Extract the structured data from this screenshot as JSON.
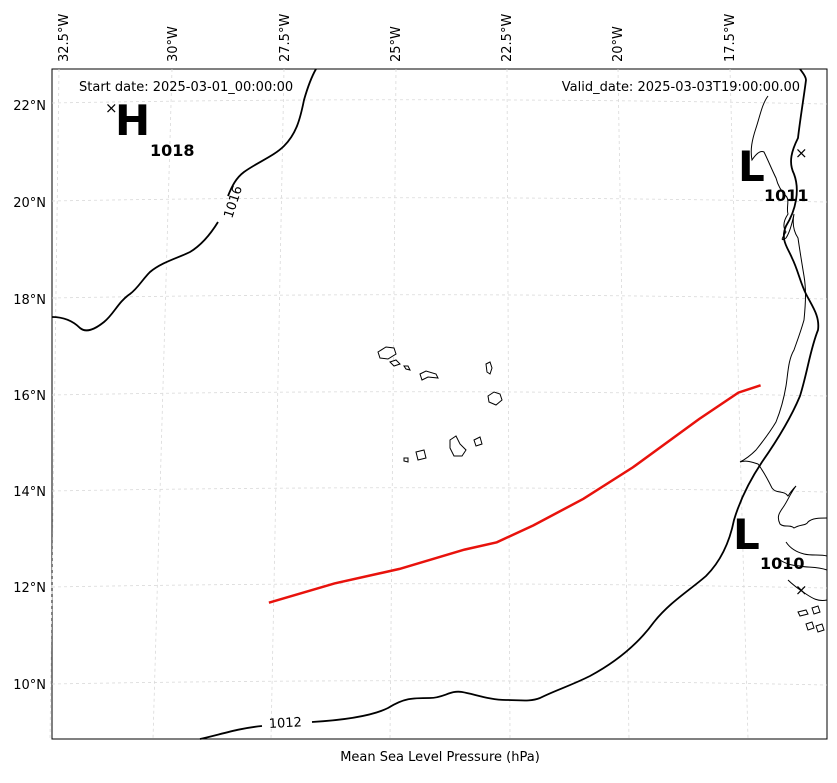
{
  "map": {
    "start_date": "Start date: 2025-03-01_00:00:00",
    "valid_date": "Valid_date: 2025-03-03T19:00:00.00",
    "xlabel": "Mean Sea Level Pressure (hPa)",
    "colors": {
      "track": "#e8120c",
      "isobar": "#000000",
      "grid": "#d9d9d9"
    },
    "lon_ticks": [
      {
        "label": "32.5°W",
        "lon": -32.5
      },
      {
        "label": "30°W",
        "lon": -30
      },
      {
        "label": "27.5°W",
        "lon": -27.5
      },
      {
        "label": "25°W",
        "lon": -25
      },
      {
        "label": "22.5°W",
        "lon": -22.5
      },
      {
        "label": "20°W",
        "lon": -20
      },
      {
        "label": "17.5°W",
        "lon": -17.5
      }
    ],
    "lat_ticks": [
      {
        "label": "22°N",
        "lat": 22
      },
      {
        "label": "20°N",
        "lat": 20
      },
      {
        "label": "18°N",
        "lat": 18
      },
      {
        "label": "16°N",
        "lat": 16
      },
      {
        "label": "14°N",
        "lat": 14
      },
      {
        "label": "12°N",
        "lat": 12
      },
      {
        "label": "10°N",
        "lat": 10
      }
    ],
    "pressure_centers": [
      {
        "type": "H",
        "value": "1018",
        "lon": -31.5,
        "lat": 21.9
      },
      {
        "type": "L",
        "value": "1011",
        "lon": -16.1,
        "lat": 20.9
      },
      {
        "type": "L",
        "value": "1010",
        "lon": -16.2,
        "lat": 12.0
      }
    ],
    "isobar_labels": [
      {
        "text": "1016",
        "lon": -28.4,
        "lat": 19.9
      },
      {
        "text": "1012",
        "lon": -27.0,
        "lat": 9.2
      }
    ],
    "track": [
      [
        -27.7,
        11.7
      ],
      [
        -26.3,
        12.1
      ],
      [
        -24.9,
        12.4
      ],
      [
        -23.5,
        12.8
      ],
      [
        -22.8,
        12.95
      ],
      [
        -22.0,
        13.3
      ],
      [
        -20.9,
        13.85
      ],
      [
        -19.8,
        14.5
      ],
      [
        -18.3,
        15.5
      ],
      [
        -17.4,
        16.05
      ],
      [
        -16.9,
        16.2
      ]
    ]
  }
}
